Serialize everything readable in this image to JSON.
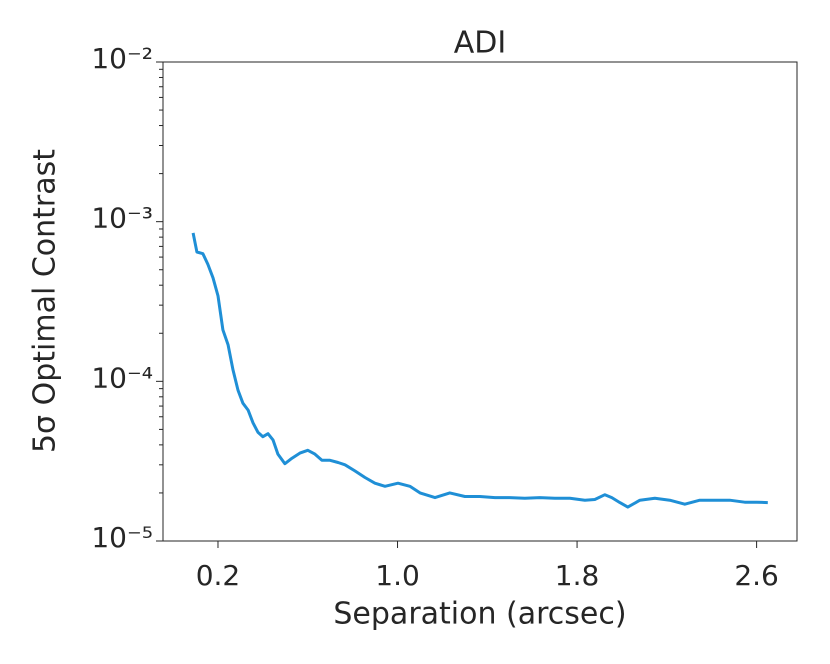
{
  "chart_data": {
    "type": "line",
    "title": "ADI",
    "xlabel": "Separation (arcsec)",
    "ylabel": "5σ Optimal Contrast",
    "log_y": true,
    "xlim": [
      -0.045,
      2.78
    ],
    "ylim": [
      1e-05,
      0.01
    ],
    "xticks": [
      0.2,
      {
        "value": 1,
        "label": "1.0"
      },
      1.8,
      2.6
    ],
    "yticks": [
      {
        "value": 1e-05,
        "label": "10⁻⁵"
      },
      {
        "value": 0.0001,
        "label": "10⁻⁴"
      },
      {
        "value": 0.001,
        "label": "10⁻³"
      },
      {
        "value": 0.01,
        "label": "10⁻²"
      }
    ],
    "x": [
      0.089,
      0.106,
      0.133,
      0.155,
      0.178,
      0.2,
      0.222,
      0.245,
      0.267,
      0.289,
      0.311,
      0.334,
      0.356,
      0.378,
      0.4,
      0.423,
      0.445,
      0.467,
      0.498,
      0.53,
      0.565,
      0.6,
      0.632,
      0.663,
      0.699,
      0.735,
      0.766,
      0.81,
      0.855,
      0.899,
      0.944,
      1.002,
      1.055,
      1.1,
      1.167,
      1.233,
      1.3,
      1.367,
      1.434,
      1.5,
      1.567,
      1.634,
      1.701,
      1.768,
      1.835,
      1.879,
      1.924,
      1.955,
      1.991,
      2.026,
      2.08,
      2.147,
      2.213,
      2.28,
      2.347,
      2.414,
      2.48,
      2.547,
      2.601,
      2.65
    ],
    "series": [
      {
        "color": "#1f8fd6",
        "values": [
          0.00085,
          0.000646,
          0.00063,
          0.00054,
          0.000445,
          0.000343,
          0.00021,
          0.000169,
          0.000118,
          8.8e-05,
          7.3e-05,
          6.6e-05,
          5.5e-05,
          4.8e-05,
          4.5e-05,
          4.7e-05,
          4.3e-05,
          3.5e-05,
          3.05e-05,
          3.3e-05,
          3.55e-05,
          3.7e-05,
          3.5e-05,
          3.2e-05,
          3.2e-05,
          3.1e-05,
          3e-05,
          2.75e-05,
          2.5e-05,
          2.3e-05,
          2.2e-05,
          2.3e-05,
          2.2e-05,
          2e-05,
          1.87e-05,
          2e-05,
          1.9e-05,
          1.9e-05,
          1.87e-05,
          1.87e-05,
          1.85e-05,
          1.87e-05,
          1.85e-05,
          1.85e-05,
          1.8e-05,
          1.82e-05,
          1.95e-05,
          1.87e-05,
          1.74e-05,
          1.63e-05,
          1.8e-05,
          1.85e-05,
          1.8e-05,
          1.7e-05,
          1.8e-05,
          1.8e-05,
          1.8e-05,
          1.75e-05,
          1.75e-05,
          1.74e-05
        ]
      }
    ]
  }
}
